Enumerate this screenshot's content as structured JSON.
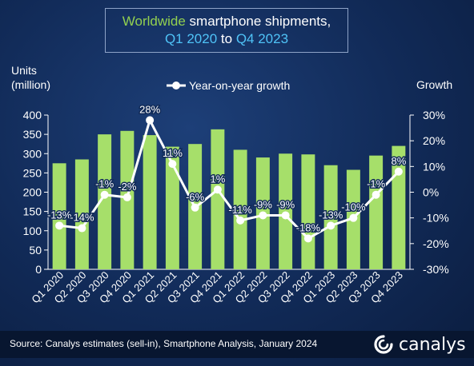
{
  "title": {
    "line1_a": "Worldwide",
    "line1_b": " smartphone shipments,",
    "line2_a": "Q1 2020",
    "line2_b": " to ",
    "line2_c": "Q4 2023"
  },
  "colors": {
    "bar": "#a6df6a",
    "line": "#ffffff",
    "title_green": "#92d050",
    "title_blue": "#4fc3f7"
  },
  "source": "Source: Canalys estimates (sell-in), Smartphone Analysis, January 2024",
  "logo": {
    "icon": "canalys-swirl-icon",
    "text": "canalys"
  },
  "chart_data": {
    "type": "bar",
    "left_axis_label_line1": "Units",
    "left_axis_label_line2": "(million)",
    "right_axis_label": "Growth",
    "legend": "Year-on-year growth",
    "categories": [
      "Q1 2020",
      "Q2 2020",
      "Q3 2020",
      "Q4 2020",
      "Q1 2021",
      "Q2 2021",
      "Q3 2021",
      "Q4 2021",
      "Q1 2022",
      "Q2 2022",
      "Q3 2022",
      "Q4 2022",
      "Q1 2023",
      "Q2 2023",
      "Q3 2023",
      "Q4 2023"
    ],
    "bars": [
      275,
      285,
      350,
      359,
      348,
      318,
      325,
      363,
      310,
      290,
      300,
      298,
      270,
      258,
      295,
      320
    ],
    "growth": [
      -13,
      -14,
      -1,
      -2,
      28,
      11,
      -6,
      1,
      -11,
      -9,
      -9,
      -18,
      -13,
      -10,
      -1,
      8
    ],
    "growth_labels": [
      "-13%",
      "-14%",
      "-1%",
      "-2%",
      "28%",
      "11%",
      "-6%",
      "1%",
      "-11%",
      "-9%",
      "-9%",
      "-18%",
      "-13%",
      "-10%",
      "-1%",
      "8%"
    ],
    "left_ylim": [
      0,
      400
    ],
    "right_ylim": [
      -30,
      30
    ],
    "left_ticks": [
      "0",
      "50",
      "100",
      "150",
      "200",
      "250",
      "300",
      "350",
      "400"
    ],
    "right_ticks": [
      "-30%",
      "-20%",
      "-10%",
      "0%",
      "10%",
      "20%",
      "30%"
    ]
  }
}
